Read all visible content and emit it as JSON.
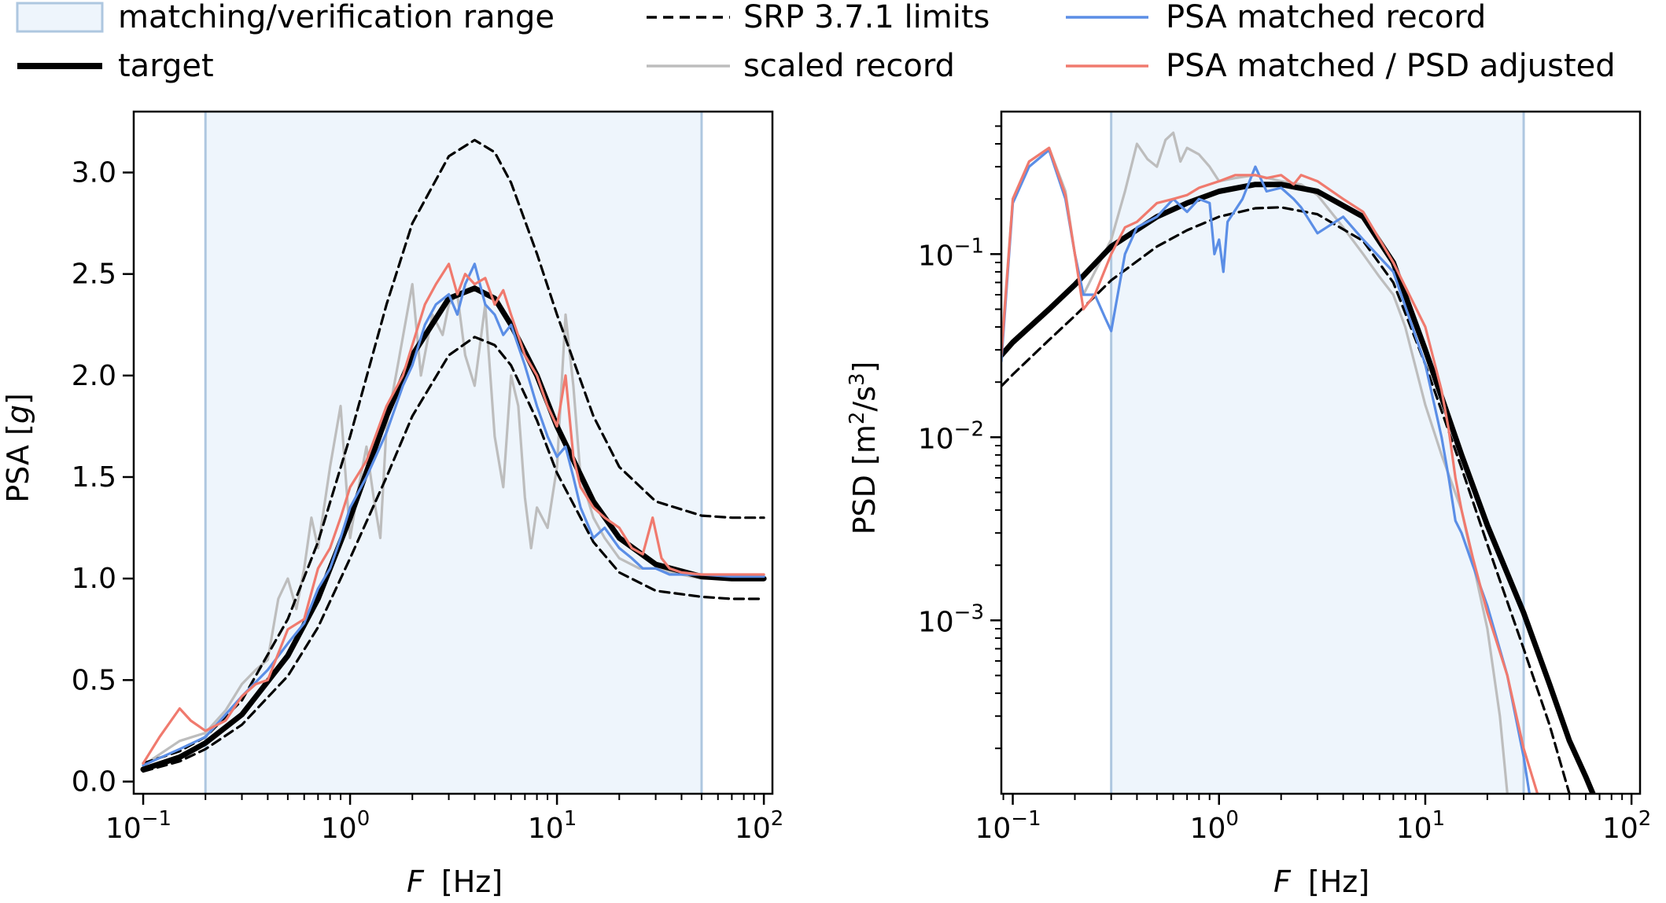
{
  "legend": {
    "entries": [
      {
        "key": "range",
        "label": "matching/verification range",
        "kind": "patch"
      },
      {
        "key": "target",
        "label": "target",
        "kind": "line-thick"
      },
      {
        "key": "srp",
        "label": "SRP 3.7.1 limits",
        "kind": "line-dashed"
      },
      {
        "key": "scaled",
        "label": "scaled record",
        "kind": "line"
      },
      {
        "key": "psa",
        "label": "PSA matched record",
        "kind": "line"
      },
      {
        "key": "psd_adj",
        "label": "PSA matched / PSD adjusted",
        "kind": "line"
      }
    ]
  },
  "colors": {
    "range_fill": "#eef5fc",
    "range_edge": "#aec7e0",
    "target": "#000000",
    "srp": "#000000",
    "scaled": "#bdbdbd",
    "psa": "#5b8ee6",
    "psd_adj": "#f07a6e"
  },
  "chart_data": [
    {
      "type": "line",
      "panel": "left",
      "xlabel_symbol": "F",
      "xlabel_unit": "[Hz]",
      "ylabel_text": "PSA [",
      "ylabel_symbol": "g",
      "ylabel_close": "]",
      "xscale": "log",
      "xlim": [
        0.09,
        110
      ],
      "ylim": [
        -0.06,
        3.3
      ],
      "x_ticks": [
        {
          "base": "10",
          "exp": "−1",
          "value": 0.1
        },
        {
          "base": "10",
          "exp": "0",
          "value": 1
        },
        {
          "base": "10",
          "exp": "1",
          "value": 10
        },
        {
          "base": "10",
          "exp": "2",
          "value": 100
        }
      ],
      "y_ticks": [
        {
          "label": "0.0",
          "value": 0.0
        },
        {
          "label": "0.5",
          "value": 0.5
        },
        {
          "label": "1.0",
          "value": 1.0
        },
        {
          "label": "1.5",
          "value": 1.5
        },
        {
          "label": "2.0",
          "value": 2.0
        },
        {
          "label": "2.5",
          "value": 2.5
        },
        {
          "label": "3.0",
          "value": 3.0
        }
      ],
      "range": [
        0.2,
        50
      ],
      "series": [
        {
          "key": "target",
          "x": [
            0.1,
            0.15,
            0.2,
            0.3,
            0.5,
            0.7,
            1,
            1.5,
            2,
            3,
            4,
            5,
            6,
            8,
            10,
            15,
            20,
            30,
            50,
            70,
            100
          ],
          "y": [
            0.06,
            0.12,
            0.19,
            0.33,
            0.62,
            0.9,
            1.3,
            1.8,
            2.1,
            2.38,
            2.43,
            2.38,
            2.25,
            2.0,
            1.75,
            1.38,
            1.2,
            1.07,
            1.01,
            1.0,
            1.0
          ]
        },
        {
          "key": "srp_upper",
          "x": [
            0.1,
            0.15,
            0.2,
            0.3,
            0.5,
            0.7,
            1,
            1.5,
            2,
            3,
            4,
            5,
            6,
            8,
            10,
            15,
            20,
            30,
            50,
            70,
            100
          ],
          "y": [
            0.09,
            0.15,
            0.22,
            0.4,
            0.8,
            1.18,
            1.7,
            2.35,
            2.75,
            3.08,
            3.16,
            3.1,
            2.95,
            2.6,
            2.3,
            1.8,
            1.55,
            1.38,
            1.31,
            1.3,
            1.3
          ]
        },
        {
          "key": "srp_lower",
          "x": [
            0.1,
            0.15,
            0.2,
            0.3,
            0.5,
            0.7,
            1,
            1.5,
            2,
            3,
            4,
            5,
            6,
            8,
            10,
            15,
            20,
            30,
            50,
            70,
            100
          ],
          "y": [
            0.05,
            0.1,
            0.16,
            0.28,
            0.52,
            0.76,
            1.1,
            1.5,
            1.8,
            2.1,
            2.19,
            2.15,
            2.05,
            1.78,
            1.52,
            1.18,
            1.03,
            0.94,
            0.91,
            0.9,
            0.9
          ]
        },
        {
          "key": "scaled",
          "x": [
            0.1,
            0.15,
            0.2,
            0.25,
            0.3,
            0.35,
            0.4,
            0.45,
            0.5,
            0.55,
            0.6,
            0.65,
            0.7,
            0.8,
            0.9,
            1.0,
            1.1,
            1.2,
            1.3,
            1.4,
            1.5,
            1.7,
            2.0,
            2.2,
            2.5,
            2.8,
            3.0,
            3.3,
            3.6,
            4.0,
            4.5,
            5.0,
            5.5,
            6.0,
            6.5,
            7.0,
            7.5,
            8.0,
            9.0,
            10,
            11,
            12,
            13,
            14,
            15,
            17,
            20,
            25,
            30,
            40,
            50,
            70,
            100
          ],
          "y": [
            0.08,
            0.2,
            0.24,
            0.35,
            0.48,
            0.55,
            0.6,
            0.9,
            1.0,
            0.85,
            1.05,
            1.3,
            1.15,
            1.55,
            1.85,
            1.2,
            1.45,
            1.65,
            1.4,
            1.2,
            1.75,
            2.05,
            2.45,
            2.0,
            2.3,
            2.2,
            2.35,
            2.4,
            2.1,
            1.95,
            2.35,
            1.7,
            1.45,
            2.0,
            1.85,
            1.4,
            1.15,
            1.35,
            1.25,
            1.55,
            2.3,
            1.95,
            1.5,
            1.4,
            1.3,
            1.2,
            1.1,
            1.05,
            1.05,
            1.02,
            1.0,
            1.0,
            1.0
          ]
        },
        {
          "key": "psa",
          "x": [
            0.1,
            0.15,
            0.2,
            0.3,
            0.4,
            0.5,
            0.6,
            0.7,
            0.8,
            0.9,
            1.0,
            1.2,
            1.5,
            1.8,
            2.0,
            2.3,
            2.6,
            3.0,
            3.3,
            3.6,
            4.0,
            4.5,
            5.0,
            5.5,
            6.0,
            7.0,
            8.0,
            9.0,
            10,
            11,
            12,
            13,
            15,
            17,
            20,
            23,
            26,
            30,
            35,
            40,
            50,
            70,
            100
          ],
          "y": [
            0.08,
            0.16,
            0.22,
            0.42,
            0.55,
            0.68,
            0.78,
            0.95,
            1.05,
            1.2,
            1.35,
            1.5,
            1.72,
            1.95,
            2.05,
            2.25,
            2.35,
            2.4,
            2.3,
            2.45,
            2.55,
            2.35,
            2.3,
            2.2,
            2.25,
            2.05,
            1.85,
            1.7,
            1.6,
            1.65,
            1.5,
            1.35,
            1.2,
            1.25,
            1.15,
            1.1,
            1.05,
            1.05,
            1.02,
            1.02,
            1.02,
            1.01,
            1.01
          ]
        },
        {
          "key": "psd_adj",
          "x": [
            0.1,
            0.12,
            0.15,
            0.17,
            0.2,
            0.25,
            0.3,
            0.35,
            0.4,
            0.5,
            0.6,
            0.7,
            0.8,
            0.9,
            1.0,
            1.2,
            1.5,
            1.8,
            2.0,
            2.3,
            2.6,
            3.0,
            3.3,
            3.6,
            4.0,
            4.5,
            5.0,
            5.5,
            6.0,
            7.0,
            8.0,
            9.0,
            10,
            11,
            12,
            13,
            15,
            17,
            20,
            23,
            26,
            29,
            32,
            35,
            40,
            50,
            70,
            100
          ],
          "y": [
            0.09,
            0.22,
            0.36,
            0.3,
            0.25,
            0.3,
            0.42,
            0.48,
            0.5,
            0.75,
            0.8,
            1.05,
            1.15,
            1.3,
            1.45,
            1.58,
            1.85,
            2.0,
            2.15,
            2.35,
            2.45,
            2.55,
            2.4,
            2.5,
            2.45,
            2.48,
            2.35,
            2.42,
            2.3,
            2.1,
            2.0,
            1.85,
            1.75,
            2.0,
            1.6,
            1.45,
            1.35,
            1.3,
            1.25,
            1.15,
            1.12,
            1.3,
            1.1,
            1.05,
            1.03,
            1.02,
            1.02,
            1.02
          ]
        }
      ]
    },
    {
      "type": "line",
      "panel": "right",
      "xlabel_symbol": "F",
      "xlabel_unit": "[Hz]",
      "ylabel_prefix": "PSD [m",
      "ylabel_sup1": "2",
      "ylabel_mid": "/s",
      "ylabel_sup2": "3",
      "ylabel_close": "]",
      "xscale": "log",
      "yscale": "log",
      "xlim": [
        0.088,
        110
      ],
      "ylim": [
        0.000113,
        0.6
      ],
      "x_ticks": [
        {
          "base": "10",
          "exp": "−1",
          "value": 0.1
        },
        {
          "base": "10",
          "exp": "0",
          "value": 1
        },
        {
          "base": "10",
          "exp": "1",
          "value": 10
        },
        {
          "base": "10",
          "exp": "2",
          "value": 100
        }
      ],
      "y_ticks": [
        {
          "base": "10",
          "exp": "−3",
          "value": 0.001
        },
        {
          "base": "10",
          "exp": "−2",
          "value": 0.01
        },
        {
          "base": "10",
          "exp": "−1",
          "value": 0.1
        }
      ],
      "range": [
        0.3,
        30
      ],
      "series": [
        {
          "key": "target",
          "x": [
            0.088,
            0.1,
            0.15,
            0.2,
            0.3,
            0.5,
            0.7,
            1.0,
            1.5,
            2.0,
            3.0,
            5.0,
            7.0,
            10,
            15,
            20,
            30,
            40,
            50,
            60,
            65
          ],
          "y": [
            0.028,
            0.033,
            0.05,
            0.068,
            0.11,
            0.16,
            0.19,
            0.22,
            0.24,
            0.24,
            0.22,
            0.16,
            0.09,
            0.03,
            0.008,
            0.0033,
            0.0011,
            0.00045,
            0.00022,
            0.00014,
            0.000113
          ]
        },
        {
          "key": "srp_lower",
          "x": [
            0.088,
            0.1,
            0.15,
            0.2,
            0.3,
            0.5,
            0.7,
            1.0,
            1.5,
            2.0,
            3.0,
            5.0,
            7.0,
            10,
            15,
            20,
            30,
            40,
            50
          ],
          "y": [
            0.019,
            0.022,
            0.034,
            0.046,
            0.072,
            0.11,
            0.135,
            0.16,
            0.178,
            0.18,
            0.165,
            0.118,
            0.07,
            0.025,
            0.0068,
            0.0026,
            0.0007,
            0.00027,
            0.000113
          ]
        },
        {
          "key": "scaled",
          "x": [
            0.088,
            0.1,
            0.12,
            0.15,
            0.18,
            0.2,
            0.22,
            0.25,
            0.3,
            0.35,
            0.4,
            0.45,
            0.5,
            0.55,
            0.6,
            0.65,
            0.7,
            0.8,
            0.9,
            1.0,
            1.2,
            1.5,
            2.0,
            2.5,
            3.0,
            4.0,
            5.0,
            6.0,
            7.0,
            8.0,
            10,
            12,
            15,
            20,
            23,
            25
          ],
          "y": [
            0.03,
            0.2,
            0.32,
            0.38,
            0.22,
            0.1,
            0.06,
            0.08,
            0.12,
            0.22,
            0.4,
            0.33,
            0.3,
            0.42,
            0.46,
            0.32,
            0.38,
            0.35,
            0.3,
            0.25,
            0.26,
            0.27,
            0.25,
            0.24,
            0.21,
            0.14,
            0.1,
            0.075,
            0.06,
            0.04,
            0.015,
            0.008,
            0.004,
            0.0009,
            0.0003,
            0.000113
          ]
        },
        {
          "key": "psa",
          "x": [
            0.088,
            0.1,
            0.12,
            0.15,
            0.18,
            0.2,
            0.22,
            0.25,
            0.28,
            0.3,
            0.35,
            0.4,
            0.5,
            0.6,
            0.7,
            0.8,
            0.9,
            0.95,
            1.0,
            1.05,
            1.1,
            1.3,
            1.5,
            1.7,
            2.0,
            2.3,
            2.5,
            3.0,
            4.0,
            5.0,
            7.0,
            10,
            12,
            13,
            14,
            15,
            17,
            20,
            25,
            30,
            32
          ],
          "y": [
            0.026,
            0.19,
            0.3,
            0.37,
            0.2,
            0.1,
            0.06,
            0.06,
            0.045,
            0.038,
            0.1,
            0.14,
            0.16,
            0.2,
            0.17,
            0.2,
            0.19,
            0.1,
            0.12,
            0.08,
            0.15,
            0.2,
            0.3,
            0.22,
            0.23,
            0.2,
            0.18,
            0.13,
            0.16,
            0.12,
            0.08,
            0.025,
            0.01,
            0.006,
            0.0035,
            0.003,
            0.002,
            0.0012,
            0.0005,
            0.00018,
            0.000113
          ]
        },
        {
          "key": "psd_adj",
          "x": [
            0.088,
            0.1,
            0.12,
            0.15,
            0.18,
            0.2,
            0.22,
            0.25,
            0.3,
            0.35,
            0.4,
            0.5,
            0.6,
            0.7,
            0.8,
            1.0,
            1.2,
            1.5,
            1.7,
            2.0,
            2.3,
            2.5,
            3.0,
            4.0,
            5.0,
            7.0,
            10,
            12,
            13,
            14,
            15,
            17,
            20,
            25,
            30,
            35
          ],
          "y": [
            0.028,
            0.2,
            0.32,
            0.38,
            0.21,
            0.1,
            0.05,
            0.06,
            0.1,
            0.14,
            0.15,
            0.19,
            0.2,
            0.21,
            0.23,
            0.25,
            0.27,
            0.27,
            0.26,
            0.27,
            0.24,
            0.27,
            0.25,
            0.2,
            0.17,
            0.09,
            0.04,
            0.018,
            0.011,
            0.006,
            0.004,
            0.0022,
            0.0011,
            0.0005,
            0.0002,
            0.000113
          ]
        }
      ]
    }
  ]
}
